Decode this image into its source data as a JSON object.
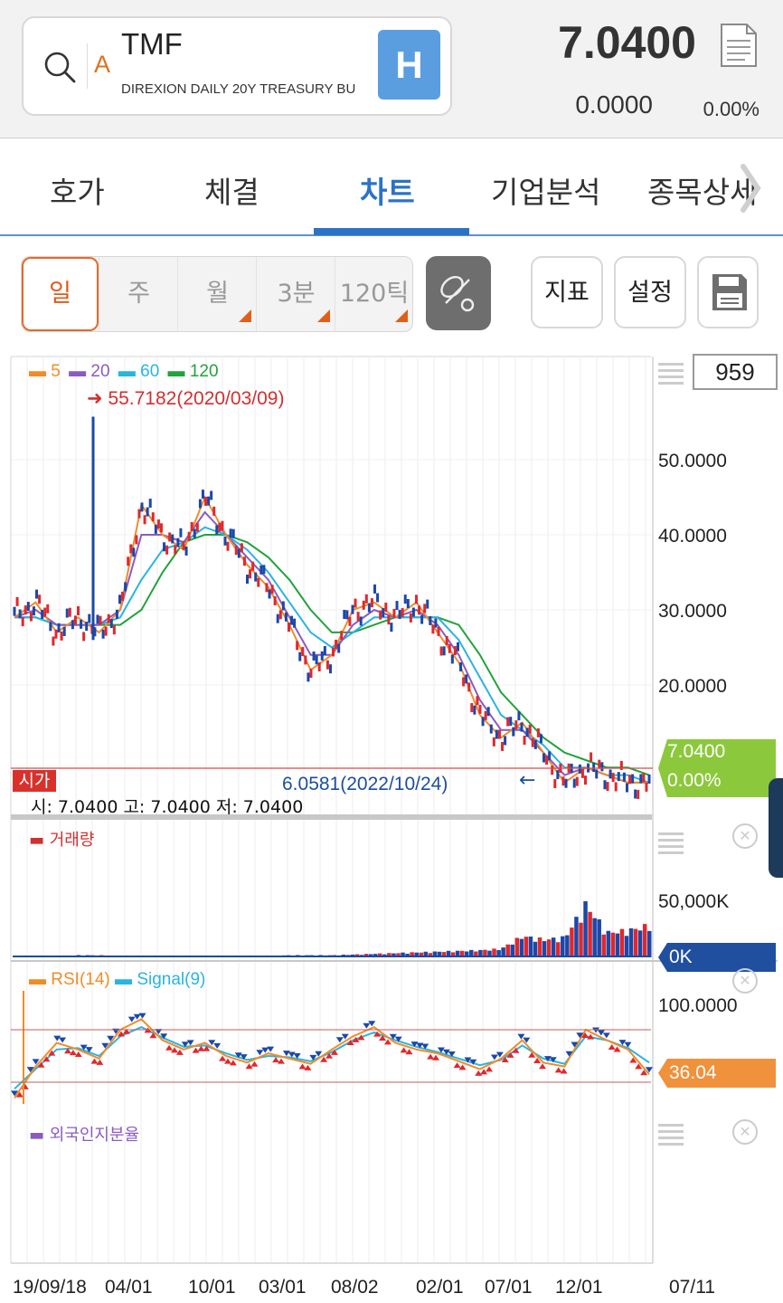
{
  "header": {
    "ticker": "TMF",
    "company_name": "DIREXION DAILY 20Y TREASURY BU",
    "type_badge": "A",
    "exchange_badge": "H",
    "price": "7.0400",
    "change": "0.0000",
    "change_rate": "0.00%"
  },
  "tabs": [
    "호가",
    "체결",
    "차트",
    "기업분석",
    "종목상세"
  ],
  "active_tab": "차트",
  "period_buttons": [
    "일",
    "주",
    "월",
    "3분",
    "120틱"
  ],
  "active_period": "일",
  "tool_buttons": {
    "indicator": "지표",
    "settings": "설정"
  },
  "chart": {
    "count_box": "959",
    "ma_legend": [
      {
        "label": "5",
        "color": "#f08c28"
      },
      {
        "label": "20",
        "color": "#8a5cc0"
      },
      {
        "label": "60",
        "color": "#2ab4e0"
      },
      {
        "label": "120",
        "color": "#21a33c"
      }
    ],
    "max_annotation": "55.7182(2020/03/09)",
    "min_annotation": "6.0581(2022/10/24)",
    "price_axis": [
      "50.0000",
      "40.0000",
      "30.0000",
      "20.0000"
    ],
    "current_price_tag": "7.0400",
    "current_rate_tag": "0.00%",
    "open_tag": "시가",
    "ohlc_line": "시: 7.0400 고: 7.0400 저: 7.0400",
    "volume_legend": "거래량",
    "volume_axis_top": "50,000K",
    "volume_tag": "0K",
    "rsi_legend": "RSI(14)",
    "signal_legend": "Signal(9)",
    "rsi_axis_top": "100.0000",
    "rsi_tag": "36.04",
    "foreign_legend": "외국인지분율",
    "x_labels": [
      "19/09/18",
      "04/01",
      "10/01",
      "03/01",
      "08/02",
      "02/01",
      "07/01",
      "12/01",
      "07/11"
    ]
  },
  "chart_data": {
    "type": "line",
    "title": "",
    "series": [
      {
        "name": "5",
        "values": [
          29,
          31,
          27,
          29,
          27,
          30,
          44,
          40,
          38,
          45,
          40,
          36,
          33,
          28,
          22,
          24,
          30,
          31,
          29,
          31,
          27,
          23,
          16,
          13,
          15,
          11,
          7,
          9,
          8,
          7,
          7
        ]
      },
      {
        "name": "20",
        "values": [
          29,
          30,
          28,
          28,
          28,
          30,
          40,
          40,
          39,
          43,
          40,
          37,
          34,
          29,
          24,
          24,
          28,
          30,
          29,
          30,
          28,
          24,
          18,
          14,
          14,
          11,
          8,
          9,
          8,
          7,
          7
        ]
      },
      {
        "name": "60",
        "values": [
          29,
          29,
          28,
          28,
          28,
          29,
          34,
          38,
          39,
          41,
          40,
          38,
          35,
          31,
          27,
          25,
          27,
          29,
          29,
          29,
          29,
          26,
          21,
          16,
          14,
          12,
          9,
          9,
          8,
          8,
          7
        ]
      },
      {
        "name": "120",
        "values": [
          29,
          29,
          28,
          28,
          28,
          28,
          30,
          35,
          39,
          40,
          40,
          39,
          37,
          34,
          30,
          27,
          27,
          28,
          29,
          29,
          29,
          28,
          24,
          19,
          16,
          13,
          11,
          10,
          9,
          9,
          8
        ]
      }
    ],
    "price_max": 55.7182,
    "price_min": 6.0581,
    "ylim": [
      5,
      57
    ],
    "volume_k": [
      2,
      2,
      2,
      3,
      3,
      2,
      2,
      2,
      2,
      2,
      2,
      2,
      2,
      3,
      3,
      3,
      4,
      5,
      6,
      7,
      8,
      9,
      10,
      12,
      30,
      25,
      28,
      75,
      35,
      38,
      45
    ],
    "rsi": [
      18,
      42,
      60,
      55,
      48,
      70,
      78,
      62,
      55,
      60,
      50,
      45,
      52,
      48,
      44,
      55,
      65,
      72,
      60,
      55,
      52,
      46,
      40,
      48,
      62,
      45,
      42,
      70,
      62,
      55,
      36.04
    ],
    "signal": [
      25,
      40,
      55,
      56,
      50,
      65,
      72,
      64,
      57,
      58,
      52,
      47,
      50,
      49,
      46,
      53,
      62,
      68,
      62,
      57,
      53,
      48,
      43,
      47,
      58,
      48,
      44,
      65,
      62,
      56,
      45
    ],
    "rsi_levels": [
      70,
      30
    ]
  }
}
